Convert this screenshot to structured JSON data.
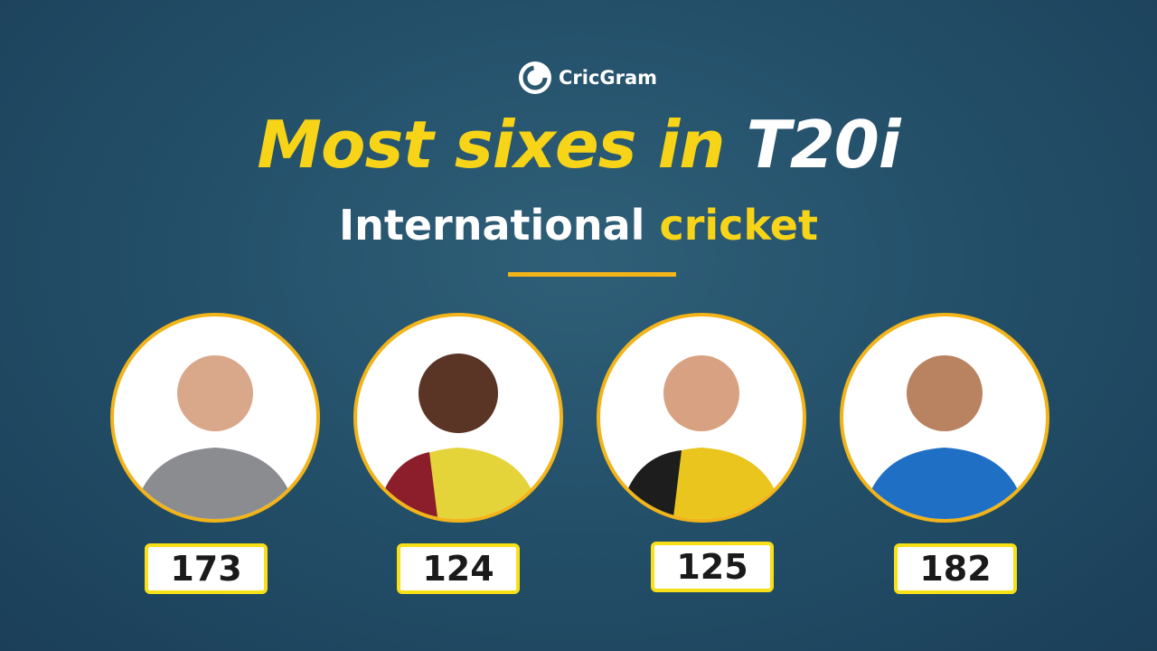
{
  "logo": "CricGram",
  "title": {
    "part1": "Most sixes in",
    "part2": "T20i"
  },
  "subtitle": {
    "part1": "International",
    "part2": "cricket"
  },
  "cards": [
    {
      "sixes": 173
    },
    {
      "sixes": 124
    },
    {
      "sixes": 125
    },
    {
      "sixes": 182
    }
  ]
}
